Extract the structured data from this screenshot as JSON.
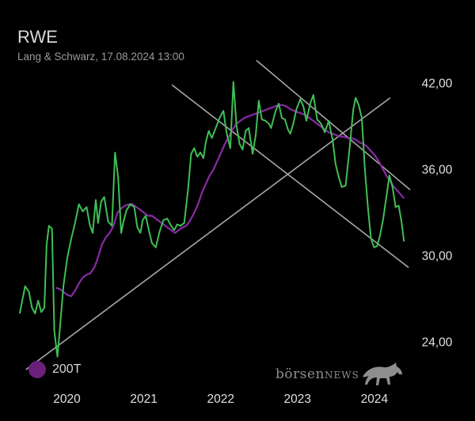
{
  "header": {
    "title": "RWE",
    "subtitle": "Lang & Schwarz, 17.08.2024 13:00"
  },
  "legend": {
    "label": "200T",
    "color": "#6a1f7a"
  },
  "brand": {
    "text_lower": "börsen",
    "text_upper": "NEWS"
  },
  "colors": {
    "price": "#3fbf55",
    "ma200": "#8a2aa6",
    "trendlines": "#a8a8a8",
    "axis_text": "#e0e0e0",
    "background": "#000000"
  },
  "chart_data": {
    "type": "line",
    "x_ticks": [
      "2020",
      "2021",
      "2022",
      "2023",
      "2024"
    ],
    "y_ticks": [
      "24,00",
      "30,00",
      "36,00",
      "42,00"
    ],
    "y_tick_values": [
      24,
      30,
      36,
      42
    ],
    "xlim": [
      2019.6,
      2024.75
    ],
    "ylim": [
      21.5,
      44.5
    ],
    "series": [
      {
        "key": "price",
        "x": [
          2019.63,
          2019.7,
          2019.75,
          2019.79,
          2019.83,
          2019.87,
          2019.91,
          2019.95,
          2019.98,
          2020.01,
          2020.05,
          2020.08,
          2020.12,
          2020.15,
          2020.2,
          2020.25,
          2020.3,
          2020.35,
          2020.4,
          2020.45,
          2020.5,
          2020.54,
          2020.58,
          2020.62,
          2020.65,
          2020.69,
          2020.73,
          2020.78,
          2020.83,
          2020.87,
          2020.91,
          2020.95,
          2020.98,
          2021.02,
          2021.07,
          2021.12,
          2021.16,
          2021.2,
          2021.23,
          2021.27,
          2021.31,
          2021.35,
          2021.4,
          2021.45,
          2021.5,
          2021.55,
          2021.6,
          2021.64,
          2021.68,
          2021.72,
          2021.77,
          2021.82,
          2021.86,
          2021.9,
          2021.94,
          2021.98,
          2022.02,
          2022.05,
          2022.09,
          2022.13,
          2022.18,
          2022.23,
          2022.28,
          2022.32,
          2022.37,
          2022.41,
          2022.45,
          2022.49,
          2022.53,
          2022.57,
          2022.61,
          2022.66,
          2022.7,
          2022.74,
          2022.78,
          2022.83,
          2022.87,
          2022.9,
          2022.93,
          2022.96,
          2023.0,
          2023.04,
          2023.08,
          2023.12,
          2023.15,
          2023.19,
          2023.23,
          2023.28,
          2023.32,
          2023.36,
          2023.41,
          2023.45,
          2023.5,
          2023.55,
          2023.6,
          2023.65,
          2023.7,
          2023.74,
          2023.78,
          2023.82,
          2023.87,
          2023.92,
          2023.97,
          2024.0,
          2024.04,
          2024.08,
          2024.12,
          2024.16,
          2024.2,
          2024.24,
          2024.28,
          2024.32,
          2024.36,
          2024.4,
          2024.44,
          2024.48,
          2024.52,
          2024.56,
          2024.6,
          2024.63
        ],
        "y": [
          26.0,
          27.9,
          27.5,
          26.4,
          26.0,
          26.9,
          26.1,
          26.4,
          30.8,
          32.1,
          31.9,
          24.8,
          23.0,
          24.8,
          28.0,
          29.9,
          31.2,
          32.3,
          33.6,
          33.1,
          33.4,
          32.2,
          31.6,
          33.9,
          32.3,
          33.8,
          34.1,
          32.4,
          32.1,
          37.2,
          35.5,
          31.6,
          32.4,
          33.2,
          33.6,
          33.4,
          32.0,
          31.6,
          32.5,
          32.8,
          31.8,
          30.9,
          30.6,
          31.7,
          32.5,
          32.6,
          32.1,
          31.8,
          32.2,
          32.1,
          32.3,
          34.6,
          37.1,
          37.5,
          36.9,
          37.2,
          36.8,
          37.9,
          38.7,
          38.2,
          38.9,
          39.6,
          40.1,
          38.6,
          37.5,
          42.1,
          39.1,
          37.8,
          37.4,
          38.7,
          38.9,
          37.1,
          38.4,
          40.8,
          39.5,
          39.4,
          39.2,
          38.9,
          39.5,
          40.1,
          40.6,
          39.6,
          39.5,
          38.8,
          38.5,
          39.2,
          40.2,
          40.9,
          40.4,
          39.4,
          40.6,
          41.2,
          39.5,
          39.2,
          38.6,
          39.4,
          38.1,
          36.4,
          35.5,
          34.8,
          34.9,
          37.4,
          40.2,
          41.0,
          40.5,
          39.6,
          36.1,
          33.4,
          31.2,
          30.6,
          30.7,
          31.5,
          32.6,
          34.1,
          35.6,
          34.8,
          33.4,
          33.5,
          32.3,
          31.0
        ],
        "note": "approximate values read from chart"
      },
      {
        "key": "ma200",
        "x": [
          2020.1,
          2020.15,
          2020.2,
          2020.25,
          2020.3,
          2020.35,
          2020.4,
          2020.45,
          2020.5,
          2020.55,
          2020.6,
          2020.65,
          2020.7,
          2020.75,
          2020.8,
          2020.85,
          2020.9,
          2020.95,
          2021.0,
          2021.05,
          2021.1,
          2021.15,
          2021.2,
          2021.25,
          2021.3,
          2021.35,
          2021.4,
          2021.45,
          2021.5,
          2021.55,
          2021.6,
          2021.65,
          2021.7,
          2021.75,
          2021.8,
          2021.85,
          2021.9,
          2021.95,
          2022.0,
          2022.05,
          2022.1,
          2022.15,
          2022.2,
          2022.25,
          2022.3,
          2022.35,
          2022.4,
          2022.45,
          2022.5,
          2022.55,
          2022.6,
          2022.65,
          2022.7,
          2022.75,
          2022.8,
          2022.85,
          2022.9,
          2022.95,
          2023.0,
          2023.05,
          2023.1,
          2023.15,
          2023.2,
          2023.25,
          2023.3,
          2023.35,
          2023.4,
          2023.45,
          2023.5,
          2023.55,
          2023.6,
          2023.65,
          2023.7,
          2023.75,
          2023.8,
          2023.85,
          2023.9,
          2023.95,
          2024.0,
          2024.05,
          2024.1,
          2024.15,
          2024.2,
          2024.25,
          2024.3,
          2024.35,
          2024.4,
          2024.45,
          2024.5,
          2024.55,
          2024.6,
          2024.63
        ],
        "y": [
          27.8,
          27.7,
          27.5,
          27.3,
          27.2,
          27.6,
          28.1,
          28.5,
          28.7,
          28.8,
          29.2,
          29.9,
          30.8,
          31.3,
          31.6,
          32.1,
          33.0,
          33.3,
          33.5,
          33.6,
          33.6,
          33.4,
          33.2,
          33.0,
          32.8,
          32.8,
          32.6,
          32.4,
          32.2,
          32.0,
          31.8,
          31.6,
          31.8,
          32.0,
          32.1,
          32.5,
          33.0,
          33.6,
          34.4,
          35.0,
          35.6,
          36.0,
          36.6,
          37.2,
          37.8,
          38.3,
          38.8,
          39.2,
          39.4,
          39.6,
          39.7,
          39.8,
          39.9,
          40.0,
          40.1,
          40.2,
          40.3,
          40.4,
          40.5,
          40.5,
          40.4,
          40.2,
          40.1,
          40.0,
          39.9,
          39.8,
          39.6,
          39.4,
          39.2,
          39.0,
          38.8,
          38.6,
          38.5,
          38.4,
          38.3,
          38.3,
          38.2,
          38.2,
          38.1,
          37.9,
          37.8,
          37.6,
          37.3,
          37.0,
          36.6,
          36.1,
          35.6,
          35.2,
          34.8,
          34.5,
          34.2,
          34.0
        ],
        "note": "approximate values read from chart"
      }
    ],
    "trendlines": [
      {
        "x": [
          2019.71,
          2024.45
        ],
        "y": [
          22.1,
          41.0
        ]
      },
      {
        "x": [
          2021.61,
          2024.69
        ],
        "y": [
          41.9,
          29.2
        ]
      },
      {
        "x": [
          2022.71,
          2024.71
        ],
        "y": [
          43.6,
          34.6
        ]
      }
    ]
  }
}
